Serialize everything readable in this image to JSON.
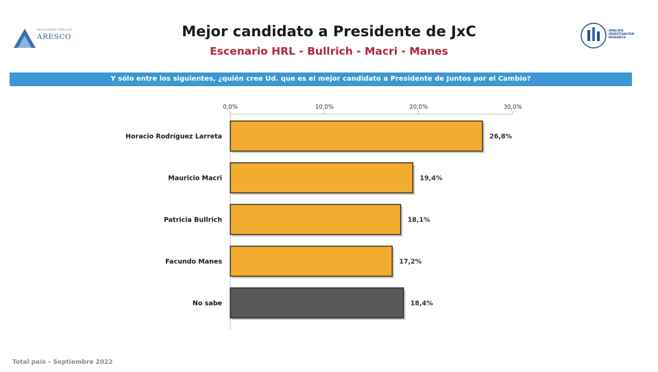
{
  "header": {
    "title": "Mejor candidato a Presidente de JxC",
    "subtitle": "Escenario HRL - Bullrich - Macri - Manes",
    "question": "Y sólo entre los siguientes, ¿quién cree Ud. que es el mejor candidato a Presidente de Juntos por el Cambio?"
  },
  "logos": {
    "left_brand": "ARESCO",
    "left_small": "RELACIONES PÚBLICAS",
    "right_small": "ANALISIS INVESTIGACIÓN RESEARCH"
  },
  "footer": "Total país – Septiembre 2022",
  "chart_data": {
    "type": "bar",
    "orientation": "horizontal",
    "categories": [
      "Horacio Rodríguez Larreta",
      "Mauricio Macri",
      "Patricia Bullrich",
      "Facundo Manes",
      "No sabe"
    ],
    "values": [
      26.8,
      19.4,
      18.1,
      17.2,
      18.4
    ],
    "value_labels": [
      "26,8%",
      "19,4%",
      "18,1%",
      "17,2%",
      "18,4%"
    ],
    "bar_colors": [
      "#f2ac2f",
      "#f2ac2f",
      "#f2ac2f",
      "#f2ac2f",
      "#595959"
    ],
    "xlim": [
      0,
      30
    ],
    "ticks": [
      0,
      10,
      20,
      30
    ],
    "tick_labels": [
      "0,0%",
      "10,0%",
      "20,0%",
      "30,0%"
    ],
    "grid": false,
    "legend": "none",
    "title": "Mejor candidato a Presidente de JxC",
    "subtitle": "Escenario HRL - Bullrich - Macri - Manes"
  }
}
